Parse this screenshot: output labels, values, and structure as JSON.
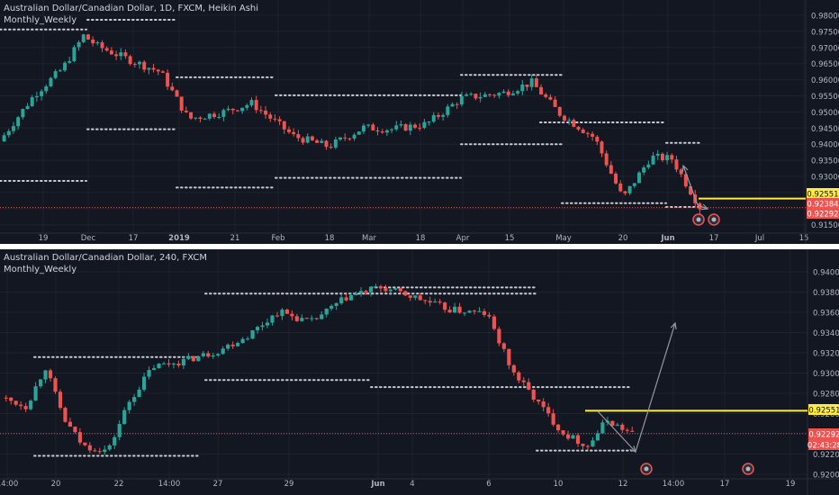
{
  "colors": {
    "bg": "#131722",
    "grid": "#1e222d",
    "up": "#26a69a",
    "down": "#ef5350",
    "level": "#ffeb3b",
    "dots": "#c8ccd4",
    "axisText": "#b2b5be",
    "arrow": "#9598a1",
    "priceLine": "#ef5350"
  },
  "top": {
    "title": "Australian Dollar/Canadian Dollar, 1D, FXCM, Heikin Ashi",
    "indicator": "Monthly_Weekly",
    "y_ticks": [
      "0.98000",
      "0.97500",
      "0.97000",
      "0.96500",
      "0.96000",
      "0.95500",
      "0.95000",
      "0.94500",
      "0.94000",
      "0.93500",
      "0.93000",
      "0.92500",
      "0.92000",
      "0.91500"
    ],
    "x_ticks": [
      "19",
      "Dec",
      "17",
      "2019",
      "21",
      "Feb",
      "18",
      "Mar",
      "18",
      "Apr",
      "15",
      "May",
      "20",
      "Jun",
      "17",
      "Jul",
      "15"
    ],
    "price_labels": [
      {
        "text": "0.92551",
        "bg": "#ffeb3b",
        "fg": "#131722"
      },
      {
        "text": "0.92384",
        "bg": "#ef5350",
        "fg": "#ffffff"
      },
      {
        "text": "0.92292",
        "bg": "#ef5350",
        "fg": "#ffffff"
      }
    ]
  },
  "bottom": {
    "title": "Australian Dollar/Canadian Dollar, 240, FXCM",
    "indicator": "Monthly_Weekly",
    "y_ticks": [
      "0.94000",
      "0.93800",
      "0.93600",
      "0.93400",
      "0.93200",
      "0.93000",
      "0.92800",
      "0.92600",
      "0.92400",
      "0.92200",
      "0.92000"
    ],
    "x_ticks": [
      "14:00",
      "20",
      "22",
      "14:00",
      "27",
      "29",
      "Jun",
      "4",
      "6",
      "10",
      "12",
      "14:00",
      "17",
      "19"
    ],
    "price_labels": [
      {
        "text": "0.92551",
        "bg": "#ffeb3b",
        "fg": "#131722"
      },
      {
        "text": "0.92292",
        "bg": "#ef5350",
        "fg": "#ffffff"
      },
      {
        "text": "02:43:28",
        "bg": "#ef5350",
        "fg": "#ffffff"
      }
    ]
  },
  "chart_data": [
    {
      "type": "candlestick",
      "title": "Australian Dollar/Canadian Dollar, 1D, FXCM, Heikin Ashi",
      "indicator": "Monthly_Weekly",
      "ylim": [
        0.914,
        0.9815
      ],
      "current_price": 0.92292,
      "level": 0.92551,
      "other_price": 0.92384,
      "dotted_levels": [
        [
          0.9743,
          0.9743
        ],
        [
          0.9771,
          0.9771
        ],
        [
          0.9455,
          0.9455
        ],
        [
          0.9306,
          0.9306
        ],
        [
          0.9605,
          0.9605
        ],
        [
          0.9287,
          0.9287
        ],
        [
          0.9553,
          0.9553
        ],
        [
          0.9315,
          0.9315
        ],
        [
          0.9612,
          0.9612
        ],
        [
          0.9412,
          0.9412
        ],
        [
          0.9475,
          0.9475
        ],
        [
          0.9242,
          0.9242
        ],
        [
          0.9416,
          0.9416
        ],
        [
          0.9231,
          0.9231
        ]
      ]
    },
    {
      "type": "candlestick",
      "title": "Australian Dollar/Canadian Dollar, 240, FXCM",
      "indicator": "Monthly_Weekly",
      "ylim": [
        0.9181,
        0.9424
      ],
      "current_price": 0.92292,
      "level": 0.92551,
      "countdown": "02:43:28",
      "dotted_levels": [
        [
          0.9316,
          0.9316
        ],
        [
          0.9204,
          0.9204
        ],
        [
          0.9388,
          0.9388
        ],
        [
          0.929,
          0.929
        ],
        [
          0.9395,
          0.9395
        ],
        [
          0.9282,
          0.9282
        ],
        [
          0.921,
          0.921
        ]
      ]
    }
  ]
}
